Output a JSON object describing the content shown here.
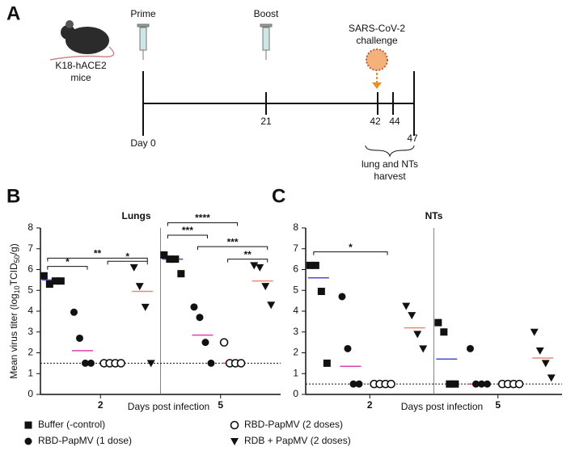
{
  "timeline": {
    "label": "A",
    "mouse": [
      "K18-hACE2",
      "mice"
    ],
    "prime": "Prime",
    "boost": "Boost",
    "challenge": [
      "SARS-CoV-2",
      "challenge"
    ],
    "days": [
      "Day 0",
      "21",
      "42",
      "44",
      "47"
    ],
    "harvest": [
      "lung and NTs",
      "harvest"
    ]
  },
  "chart_data": [
    {
      "type": "dot",
      "panel_label": "B",
      "title": "Lungs",
      "y_label": [
        "Mean virus titer (log",
        "10",
        "TCID",
        "50",
        "/g)"
      ],
      "x_label": "Days post infection",
      "categories": [
        "2",
        "5"
      ],
      "ylim": [
        0,
        8
      ],
      "yticks": [
        0,
        1,
        2,
        3,
        4,
        5,
        6,
        7,
        8
      ],
      "limit_line": 1.5,
      "series": [
        {
          "name": "Buffer (-control)",
          "marker": "square",
          "color": "#111111",
          "mean_color": "#4b4bd6",
          "values": [
            [
              5.7,
              5.3,
              5.45,
              5.45
            ],
            [
              6.7,
              6.5,
              6.5,
              5.8
            ]
          ],
          "means": [
            5.5,
            6.5
          ]
        },
        {
          "name": "RBD-PapMV (1 dose)",
          "marker": "circle",
          "color": "#111111",
          "mean_color": "#e040b0",
          "values": [
            [
              3.95,
              2.7,
              1.5,
              1.5
            ],
            [
              4.2,
              3.7,
              2.5,
              1.5
            ]
          ],
          "means": [
            2.1,
            2.85
          ]
        },
        {
          "name": "RBD-PapMV (2 doses)",
          "marker": "open-circle",
          "color": "#111111",
          "mean_color": "#e040b0",
          "values": [
            [
              1.5,
              1.5,
              1.5,
              1.5
            ],
            [
              2.5,
              1.5,
              1.5,
              1.5
            ]
          ],
          "means": [
            1.5,
            1.5
          ]
        },
        {
          "name": "RDB + PapMV (2 doses)",
          "marker": "triangle-down",
          "color": "#111111",
          "mean_color": "#e88a7a",
          "values": [
            [
              6.1,
              5.2,
              4.2,
              1.5
            ],
            [
              6.2,
              6.1,
              5.2,
              4.3
            ]
          ],
          "means": [
            4.95,
            5.45
          ]
        }
      ],
      "annotations": [
        {
          "text": "*",
          "group": 0,
          "series": [
            0,
            1
          ],
          "y": 6.15
        },
        {
          "text": "**",
          "group": 0,
          "series": [
            0,
            3
          ],
          "y": 6.55
        },
        {
          "text": "*",
          "group": 0,
          "series": [
            2,
            3
          ],
          "y": 6.4
        },
        {
          "text": "****",
          "group": 1,
          "series": [
            0,
            2
          ],
          "y": 8.25
        },
        {
          "text": "***",
          "group": 1,
          "series": [
            0,
            1
          ],
          "y": 7.65
        },
        {
          "text": "***",
          "group": 1,
          "series": [
            1,
            3
          ],
          "y": 7.1
        },
        {
          "text": "**",
          "group": 1,
          "series": [
            2,
            3
          ],
          "y": 6.5
        }
      ]
    },
    {
      "type": "dot",
      "panel_label": "C",
      "title": "NTs",
      "x_label": "Days post infection",
      "categories": [
        "2",
        "5"
      ],
      "ylim": [
        0,
        8
      ],
      "yticks": [
        0,
        1,
        2,
        3,
        4,
        5,
        6,
        7,
        8
      ],
      "limit_line": 0.5,
      "series": [
        {
          "name": "Buffer (-control)",
          "marker": "square",
          "color": "#111111",
          "mean_color": "#4b4bd6",
          "values": [
            [
              6.2,
              6.2,
              4.95,
              1.5
            ],
            [
              3.45,
              3.0,
              0.5,
              0.5
            ]
          ],
          "means": [
            5.6,
            1.7
          ]
        },
        {
          "name": "RBD-PapMV (1 dose)",
          "marker": "circle",
          "color": "#111111",
          "mean_color": "#e040b0",
          "values": [
            [
              4.7,
              2.2,
              0.5,
              0.5
            ],
            [
              2.2,
              0.5,
              0.5,
              0.5
            ]
          ],
          "means": [
            1.35,
            0.5
          ]
        },
        {
          "name": "RBD-PapMV (2 doses)",
          "marker": "open-circle",
          "color": "#111111",
          "mean_color": "#e040b0",
          "values": [
            [
              0.5,
              0.5,
              0.5,
              0.5
            ],
            [
              0.5,
              0.5,
              0.5,
              0.5
            ]
          ],
          "means": [
            0.5,
            0.5
          ]
        },
        {
          "name": "RDB + PapMV (2 doses)",
          "marker": "triangle-down",
          "color": "#111111",
          "mean_color": "#e88a7a",
          "values": [
            [
              4.25,
              3.8,
              2.9,
              2.2
            ],
            [
              3.0,
              2.1,
              1.5,
              0.8
            ]
          ],
          "means": [
            3.2,
            1.75
          ]
        }
      ],
      "annotations": [
        {
          "text": "*",
          "group": 0,
          "series": [
            0,
            2
          ],
          "y": 6.85
        }
      ]
    }
  ]
}
